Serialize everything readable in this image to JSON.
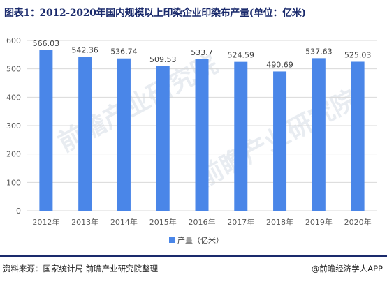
{
  "title": "图表1：2012-2020年国内规模以上印染企业印染布产量(单位：亿米)",
  "source": "资料来源：国家统计局 前瞻产业研究院整理",
  "credit": "@前瞻经济学人APP",
  "watermark": "前瞻产业研究院",
  "colors": {
    "bar": "#4a86e8",
    "grid": "#d9d9d9",
    "axis_text": "#595959"
  },
  "chart_data": {
    "type": "bar",
    "categories": [
      "2012年",
      "2013年",
      "2014年",
      "2015年",
      "2016年",
      "2017年",
      "2018年",
      "2019年",
      "2020年"
    ],
    "series": [
      {
        "name": "产量（亿米）",
        "values": [
          566.03,
          542.36,
          536.74,
          509.53,
          533.7,
          524.59,
          490.69,
          537.63,
          525.03
        ]
      }
    ],
    "value_labels": [
      "566.03",
      "542.36",
      "536.74",
      "509.53",
      "533.7",
      "524.59",
      "490.69",
      "537.63",
      "525.03"
    ],
    "ylim": [
      0,
      600
    ],
    "yticks": [
      0,
      100,
      200,
      300,
      400,
      500,
      600
    ],
    "grid": true,
    "legend_position": "bottom-center"
  }
}
